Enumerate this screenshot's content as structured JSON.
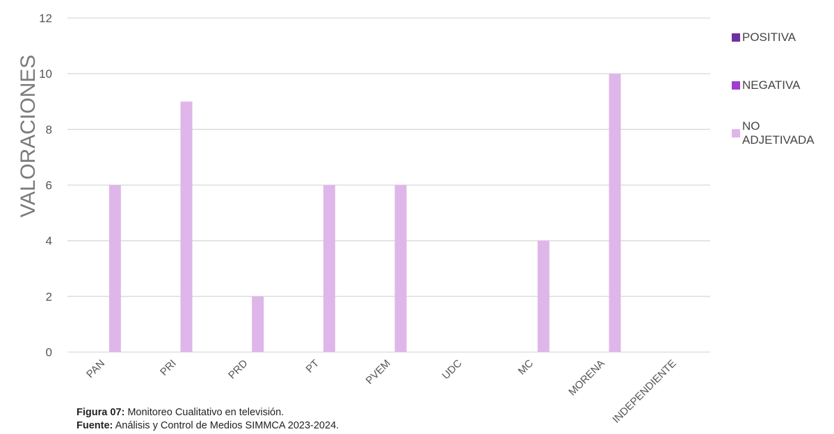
{
  "chart_data": {
    "type": "bar",
    "title": "",
    "xlabel": "",
    "ylabel": "VALORACIONES",
    "ylim": [
      0,
      12
    ],
    "yticks": [
      0,
      2,
      4,
      6,
      8,
      10,
      12
    ],
    "grid": true,
    "legend_position": "right",
    "categories": [
      "PAN",
      "PRI",
      "PRD",
      "PT",
      "PVEM",
      "UDC",
      "MC",
      "MORENA",
      "INDEPENDIENTE"
    ],
    "series": [
      {
        "name": "POSITIVA",
        "color": "#7030a0",
        "values": [
          0,
          0,
          0,
          0,
          0,
          0,
          0,
          0,
          0
        ]
      },
      {
        "name": "NEGATIVA",
        "color": "#9f3fcf",
        "values": [
          0,
          0,
          0,
          0,
          0,
          0,
          0,
          0,
          0
        ]
      },
      {
        "name": "NO ADJETIVADA",
        "color": "#dfb6ea",
        "values": [
          6,
          9,
          2,
          6,
          6,
          0,
          4,
          10,
          0
        ]
      }
    ]
  },
  "caption": {
    "figure_label": "Figura 07:",
    "figure_text": " Monitoreo Cualitativo en televisión.",
    "source_label": "Fuente:",
    "source_text": " Análisis y Control de Medios SIMMCA 2023-2024."
  }
}
